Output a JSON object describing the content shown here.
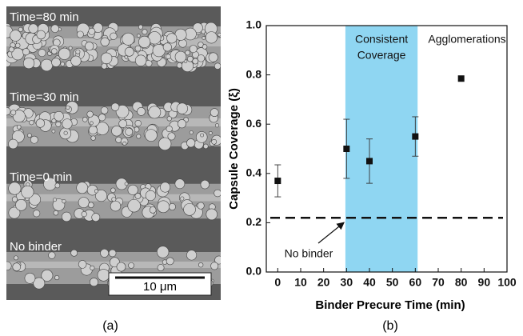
{
  "image_panel": {
    "panel_label": "(a)",
    "labels": [
      "Time=80 min",
      "Time=30 min",
      "Time=0 min",
      "No binder"
    ],
    "scale_bar": "10 μm"
  },
  "chart_data": {
    "type": "scatter",
    "panel_label": "(b)",
    "x_label": "Binder Precure Time (min)",
    "y_label": "Capsule Coverage (ξ)",
    "x": [
      0,
      30,
      40,
      60,
      80
    ],
    "series": [
      {
        "color": "#111111",
        "values": [
          0.37,
          0.5,
          0.45,
          0.55,
          0.785
        ],
        "errors": [
          0.065,
          0.12,
          0.09,
          0.08,
          null
        ]
      }
    ],
    "xlim": [
      -5,
      100
    ],
    "xticks": [
      0,
      10,
      20,
      30,
      40,
      50,
      60,
      70,
      80,
      90,
      100
    ],
    "ylim": [
      0,
      1
    ],
    "yticks": [
      {
        "value": 0,
        "label": "0.0"
      },
      {
        "value": 0.2,
        "label": "0.2"
      },
      {
        "value": 0.4,
        "label": "0.4"
      },
      {
        "value": 0.6,
        "label": "0.6"
      },
      {
        "value": 0.8,
        "label": "0.8"
      },
      {
        "value": 1,
        "label": "1.0"
      }
    ],
    "band": {
      "x": [
        29.5,
        61
      ],
      "color": "#8fd6f2",
      "label": [
        "Consistent",
        "Coverage"
      ]
    },
    "reference_line": {
      "y": 0.22,
      "label": "No binder"
    },
    "annotation": "Agglomerations"
  }
}
